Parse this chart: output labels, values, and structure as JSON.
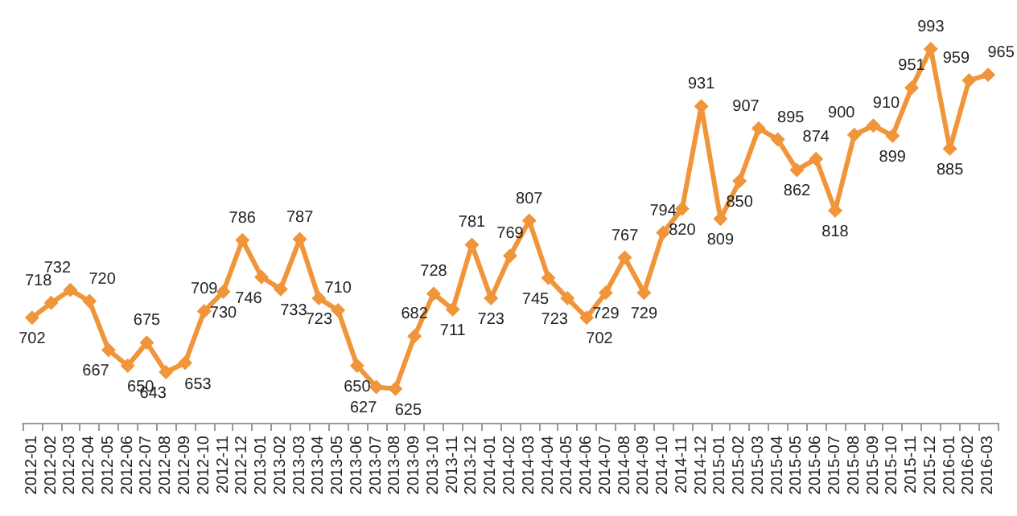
{
  "chart_data": {
    "type": "line",
    "categories": [
      "2012-01",
      "2012-02",
      "2012-03",
      "2012-04",
      "2012-05",
      "2012-06",
      "2012-07",
      "2012-08",
      "2012-09",
      "2012-10",
      "2012-11",
      "2012-12",
      "2013-01",
      "2013-02",
      "2013-03",
      "2013-04",
      "2013-05",
      "2013-06",
      "2013-07",
      "2013-08",
      "2013-09",
      "2013-10",
      "2013-11",
      "2013-12",
      "2014-01",
      "2014-02",
      "2014-03",
      "2014-04",
      "2014-05",
      "2014-06",
      "2014-07",
      "2014-08",
      "2014-09",
      "2014-10",
      "2014-11",
      "2014-12",
      "2015-01",
      "2015-02",
      "2015-03",
      "2015-04",
      "2015-05",
      "2015-06",
      "2015-07",
      "2015-08",
      "2015-09",
      "2015-10",
      "2015-11",
      "2015-12",
      "2016-01",
      "2016-02",
      "2016-03"
    ],
    "values": [
      702,
      718,
      732,
      720,
      667,
      650,
      675,
      643,
      653,
      709,
      730,
      786,
      746,
      733,
      787,
      723,
      710,
      650,
      627,
      625,
      682,
      728,
      711,
      781,
      723,
      769,
      807,
      745,
      723,
      702,
      729,
      767,
      729,
      794,
      820,
      931,
      809,
      850,
      907,
      895,
      862,
      874,
      818,
      900,
      910,
      899,
      951,
      993,
      885,
      959,
      965
    ],
    "color": "#f0953a",
    "marker": "diamond",
    "data_labels": true,
    "tick_labels": "x",
    "grid": false
  }
}
